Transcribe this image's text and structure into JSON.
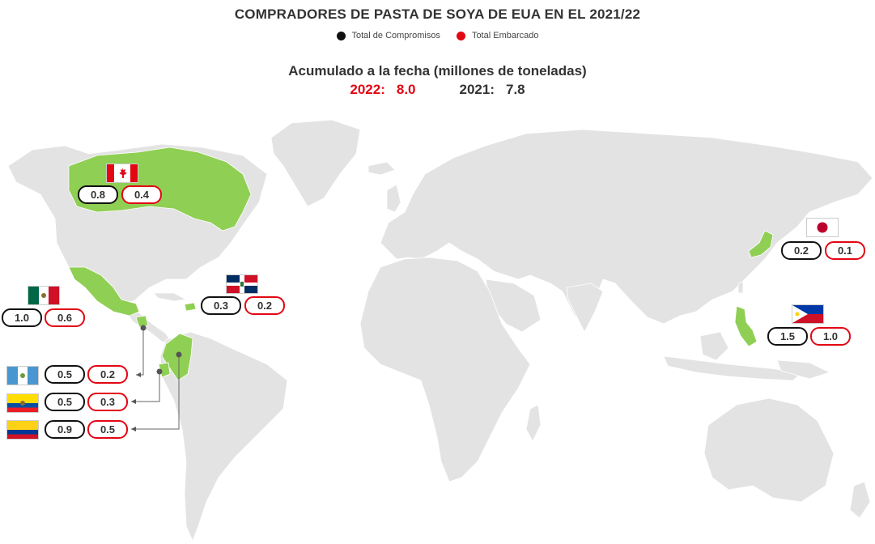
{
  "title": "COMPRADORES DE PASTA DE SOYA DE EUA EN EL 2021/22",
  "legend": {
    "committed": {
      "label": "Total de Compromisos",
      "color": "#111111"
    },
    "shipped": {
      "label": "Total Embarcado",
      "color": "#e30613"
    }
  },
  "subtitle": "Acumulado a la fecha (millones de toneladas)",
  "totals": {
    "y2022_label": "2022:",
    "y2022_value": "8.0",
    "y2021_label": "2021:",
    "y2021_value": "7.8"
  },
  "colors": {
    "land": "#e3e3e3",
    "highlight": "#8fcf53",
    "committed": "#111111",
    "shipped": "#e30613"
  },
  "countries": {
    "canada": {
      "flag": "canada-flag",
      "committed": "0.8",
      "shipped": "0.4"
    },
    "mexico": {
      "flag": "mexico-flag",
      "committed": "1.0",
      "shipped": "0.6"
    },
    "dominican_republic": {
      "flag": "dominican-republic-flag",
      "committed": "0.3",
      "shipped": "0.2"
    },
    "guatemala": {
      "flag": "guatemala-flag",
      "committed": "0.5",
      "shipped": "0.2"
    },
    "ecuador": {
      "flag": "ecuador-flag",
      "committed": "0.5",
      "shipped": "0.3"
    },
    "colombia": {
      "flag": "colombia-flag",
      "committed": "0.9",
      "shipped": "0.5"
    },
    "japan": {
      "flag": "japan-flag",
      "committed": "0.2",
      "shipped": "0.1"
    },
    "philippines": {
      "flag": "philippines-flag",
      "committed": "1.5",
      "shipped": "1.0"
    }
  }
}
